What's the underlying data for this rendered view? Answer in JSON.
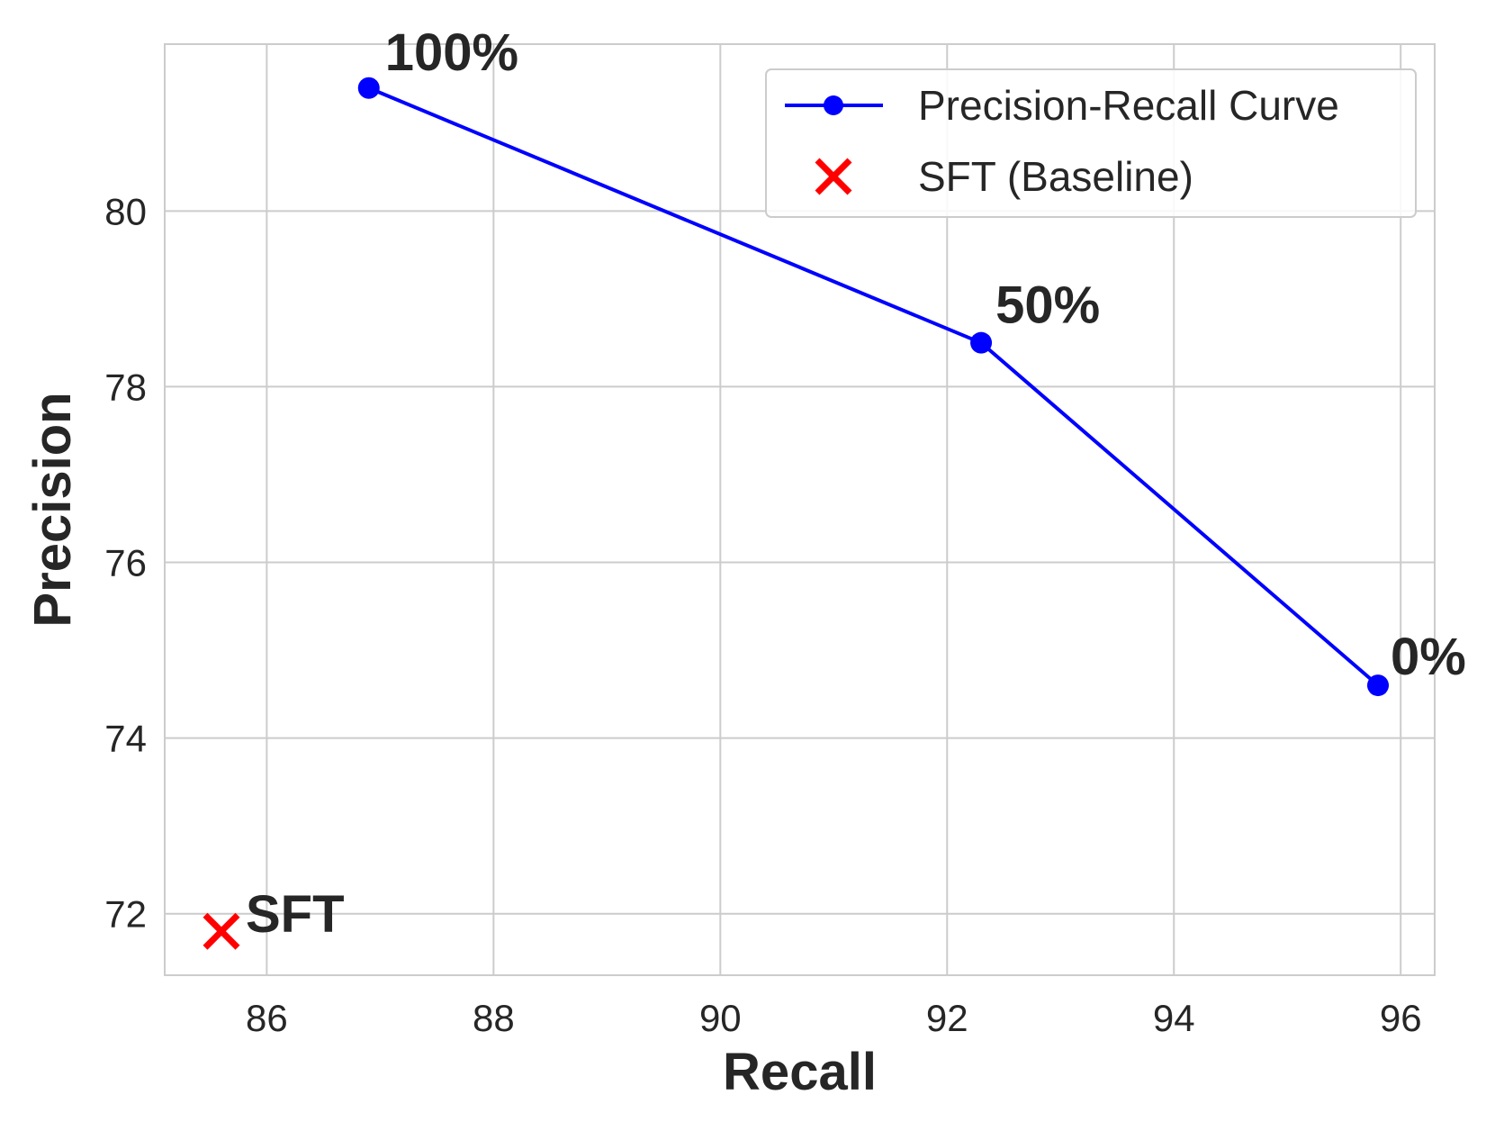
{
  "chart_data": {
    "type": "line",
    "title": "",
    "xlabel": "Recall",
    "ylabel": "Precision",
    "xlim": [
      85.1,
      96.3
    ],
    "ylim": [
      71.3,
      81.9
    ],
    "x_ticks": [
      86,
      88,
      90,
      92,
      94,
      96
    ],
    "y_ticks": [
      72,
      74,
      76,
      78,
      80
    ],
    "x_tick_labels": [
      "86",
      "88",
      "90",
      "92",
      "94",
      "96"
    ],
    "y_tick_labels": [
      "72",
      "74",
      "76",
      "78",
      "80"
    ],
    "grid": true,
    "legend_position": "top-right",
    "series": [
      {
        "name": "Precision-Recall Curve",
        "kind": "line-marker",
        "color": "#0000ff",
        "points": [
          {
            "x": 86.9,
            "y": 81.4,
            "label": "100%"
          },
          {
            "x": 92.3,
            "y": 78.5,
            "label": "50%"
          },
          {
            "x": 95.8,
            "y": 74.6,
            "label": "0%"
          }
        ]
      },
      {
        "name": "SFT (Baseline)",
        "kind": "x-marker",
        "color": "#ff0000",
        "points": [
          {
            "x": 85.6,
            "y": 71.8,
            "label": "SFT"
          }
        ]
      }
    ]
  },
  "colors": {
    "grid": "#cccccc",
    "frame": "#cccccc",
    "text": "#262626",
    "curve": "#0000ff",
    "baseline": "#ff0000"
  }
}
